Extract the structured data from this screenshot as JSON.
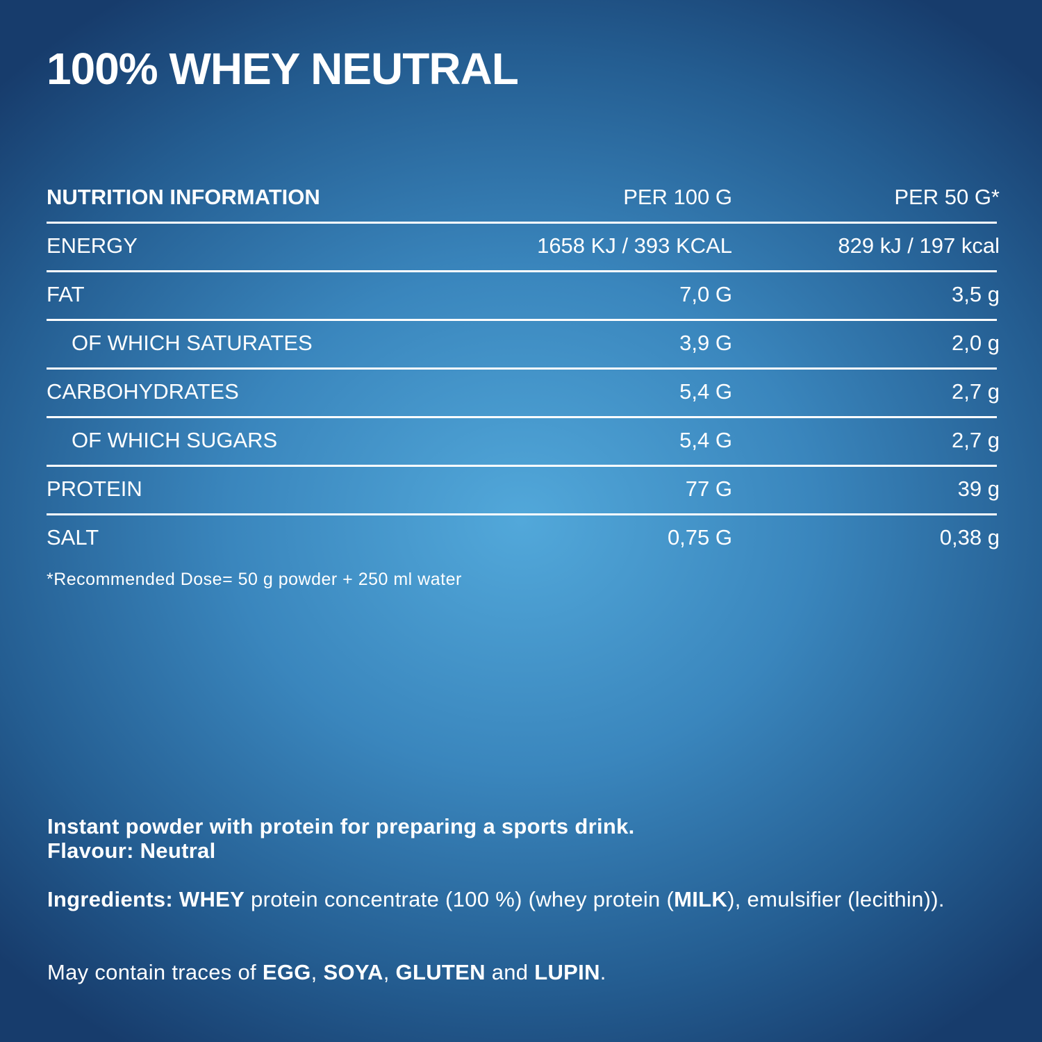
{
  "title": "100% WHEY NEUTRAL",
  "table": {
    "header": [
      "NUTRITION INFORMATION",
      "PER 100 G",
      "PER 50 G*"
    ],
    "rows": [
      {
        "cells": [
          "ENERGY",
          "1658 KJ / 393 KCAL",
          "829 kJ / 197 kcal"
        ],
        "indent": false
      },
      {
        "cells": [
          "FAT",
          "7,0 G",
          "3,5 g"
        ],
        "indent": false
      },
      {
        "cells": [
          "OF WHICH SATURATES",
          "3,9 G",
          "2,0 g"
        ],
        "indent": true
      },
      {
        "cells": [
          "CARBOHYDRATES",
          "5,4 G",
          "2,7 g"
        ],
        "indent": false
      },
      {
        "cells": [
          "OF WHICH SUGARS",
          "5,4 G",
          "2,7 g"
        ],
        "indent": true
      },
      {
        "cells": [
          "PROTEIN",
          "77 G",
          "39 g"
        ],
        "indent": false
      },
      {
        "cells": [
          "SALT",
          "0,75 G",
          "0,38 g"
        ],
        "indent": false
      }
    ],
    "footnote": "*Recommended Dose= 50 g powder + 250 ml water"
  },
  "description": [
    "Instant powder with protein for preparing a sports drink.",
    "Flavour: Neutral"
  ],
  "ingredients": [
    {
      "text": "Ingredients: ",
      "bold": true
    },
    {
      "text": "WHEY",
      "bold": true
    },
    {
      "text": " protein concentrate (100 %) (whey protein (",
      "bold": false
    },
    {
      "text": "MILK",
      "bold": true
    },
    {
      "text": "), emulsifier (lecithin)).",
      "bold": false
    }
  ],
  "traces": [
    {
      "text": "May contain traces of ",
      "bold": false
    },
    {
      "text": "EGG",
      "bold": true
    },
    {
      "text": ", ",
      "bold": false
    },
    {
      "text": "SOYA",
      "bold": true
    },
    {
      "text": ", ",
      "bold": false
    },
    {
      "text": "GLUTEN",
      "bold": true
    },
    {
      "text": " and ",
      "bold": false
    },
    {
      "text": "LUPIN",
      "bold": true
    },
    {
      "text": ".",
      "bold": false
    }
  ]
}
